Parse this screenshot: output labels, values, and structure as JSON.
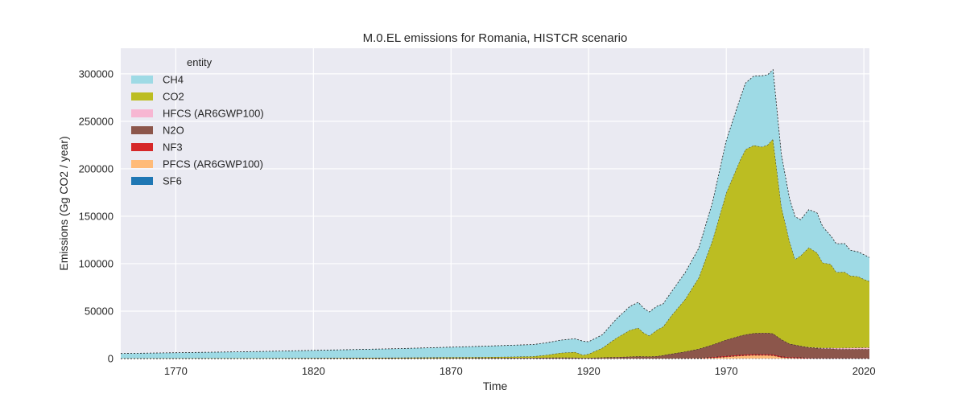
{
  "chart_data": {
    "type": "area",
    "stacked": true,
    "title": "M.0.EL emissions for Romania, HISTCR scenario",
    "xlabel": "Time",
    "ylabel": "Emissions (Gg CO2 / year)",
    "xlim": [
      1750,
      2022
    ],
    "ylim": [
      0,
      327000
    ],
    "xticks": [
      1770,
      1820,
      1870,
      1920,
      1970,
      2020
    ],
    "yticks": [
      0,
      50000,
      100000,
      150000,
      200000,
      250000,
      300000
    ],
    "grid": true,
    "background": "#eaeaf2",
    "legend": {
      "title": "entity",
      "position": "top-left"
    },
    "x": [
      1750,
      1800,
      1850,
      1880,
      1900,
      1905,
      1910,
      1915,
      1918,
      1920,
      1925,
      1930,
      1935,
      1938,
      1940,
      1942,
      1945,
      1947,
      1950,
      1955,
      1960,
      1965,
      1970,
      1975,
      1977,
      1980,
      1983,
      1985,
      1987,
      1990,
      1993,
      1995,
      1997,
      2000,
      2003,
      2005,
      2008,
      2010,
      2013,
      2015,
      2018,
      2020,
      2022
    ],
    "series": [
      {
        "name": "SF6",
        "color": "#1f77b4",
        "values": [
          0,
          0,
          0,
          0,
          0,
          0,
          0,
          0,
          0,
          0,
          0,
          0,
          0,
          0,
          0,
          0,
          0,
          0,
          0,
          0,
          0,
          0,
          0,
          50,
          50,
          50,
          50,
          50,
          50,
          50,
          50,
          50,
          50,
          50,
          50,
          50,
          50,
          50,
          50,
          50,
          50,
          50,
          50
        ]
      },
      {
        "name": "PFCS (AR6GWP100)",
        "color": "#ffbb78",
        "values": [
          0,
          0,
          0,
          0,
          0,
          0,
          0,
          0,
          0,
          0,
          0,
          0,
          0,
          0,
          0,
          0,
          0,
          0,
          0,
          100,
          300,
          800,
          1800,
          2800,
          3200,
          3500,
          3400,
          3400,
          3200,
          1200,
          600,
          500,
          400,
          200,
          150,
          150,
          150,
          150,
          150,
          150,
          150,
          150,
          150
        ]
      },
      {
        "name": "NF3",
        "color": "#d62728",
        "values": [
          0,
          0,
          0,
          0,
          0,
          0,
          0,
          0,
          0,
          0,
          0,
          0,
          0,
          0,
          0,
          0,
          0,
          0,
          0,
          200,
          400,
          800,
          1000,
          1100,
          1100,
          1100,
          1100,
          1100,
          1100,
          1000,
          900,
          900,
          800,
          500,
          300,
          300,
          300,
          300,
          300,
          300,
          300,
          300,
          300
        ]
      },
      {
        "name": "N2O",
        "color": "#8c564b",
        "values": [
          200,
          250,
          400,
          600,
          800,
          900,
          1000,
          900,
          700,
          800,
          1200,
          1500,
          2000,
          2300,
          2200,
          2100,
          2500,
          3500,
          5000,
          7000,
          9500,
          13000,
          17000,
          20000,
          21000,
          22000,
          22500,
          22500,
          22000,
          18000,
          14000,
          13000,
          12000,
          11000,
          10500,
          10000,
          10000,
          9500,
          9500,
          9500,
          9500,
          9500,
          9500
        ]
      },
      {
        "name": "HFCS (AR6GWP100)",
        "color": "#f7b6d2",
        "values": [
          0,
          0,
          0,
          0,
          0,
          0,
          0,
          0,
          0,
          0,
          0,
          0,
          0,
          0,
          0,
          0,
          0,
          0,
          0,
          0,
          0,
          0,
          0,
          0,
          0,
          0,
          0,
          0,
          0,
          0,
          0,
          50,
          100,
          200,
          400,
          600,
          800,
          1000,
          1200,
          1300,
          1400,
          1500,
          1500
        ]
      },
      {
        "name": "CO2",
        "color": "#bcbd22",
        "values": [
          100,
          200,
          500,
          800,
          1500,
          3000,
          5000,
          6000,
          3000,
          4000,
          10000,
          20000,
          28000,
          30000,
          25000,
          22000,
          28000,
          30000,
          40000,
          55000,
          75000,
          110000,
          155000,
          185000,
          195000,
          198000,
          196000,
          198000,
          205000,
          140000,
          108000,
          90000,
          95000,
          105000,
          100000,
          90000,
          88000,
          80000,
          80000,
          76000,
          75000,
          72000,
          70000
        ]
      },
      {
        "name": "CH4",
        "color": "#9edae5",
        "values": [
          5000,
          7000,
          9500,
          11500,
          12500,
          13000,
          13500,
          14000,
          14500,
          13000,
          14000,
          20000,
          25000,
          27000,
          26000,
          25000,
          25000,
          24000,
          25000,
          28000,
          31000,
          40000,
          55000,
          65000,
          70000,
          73000,
          75000,
          74000,
          73000,
          55000,
          45000,
          45000,
          38000,
          40000,
          42000,
          38000,
          30000,
          30000,
          30000,
          27000,
          26000,
          26000,
          25000
        ]
      }
    ]
  }
}
